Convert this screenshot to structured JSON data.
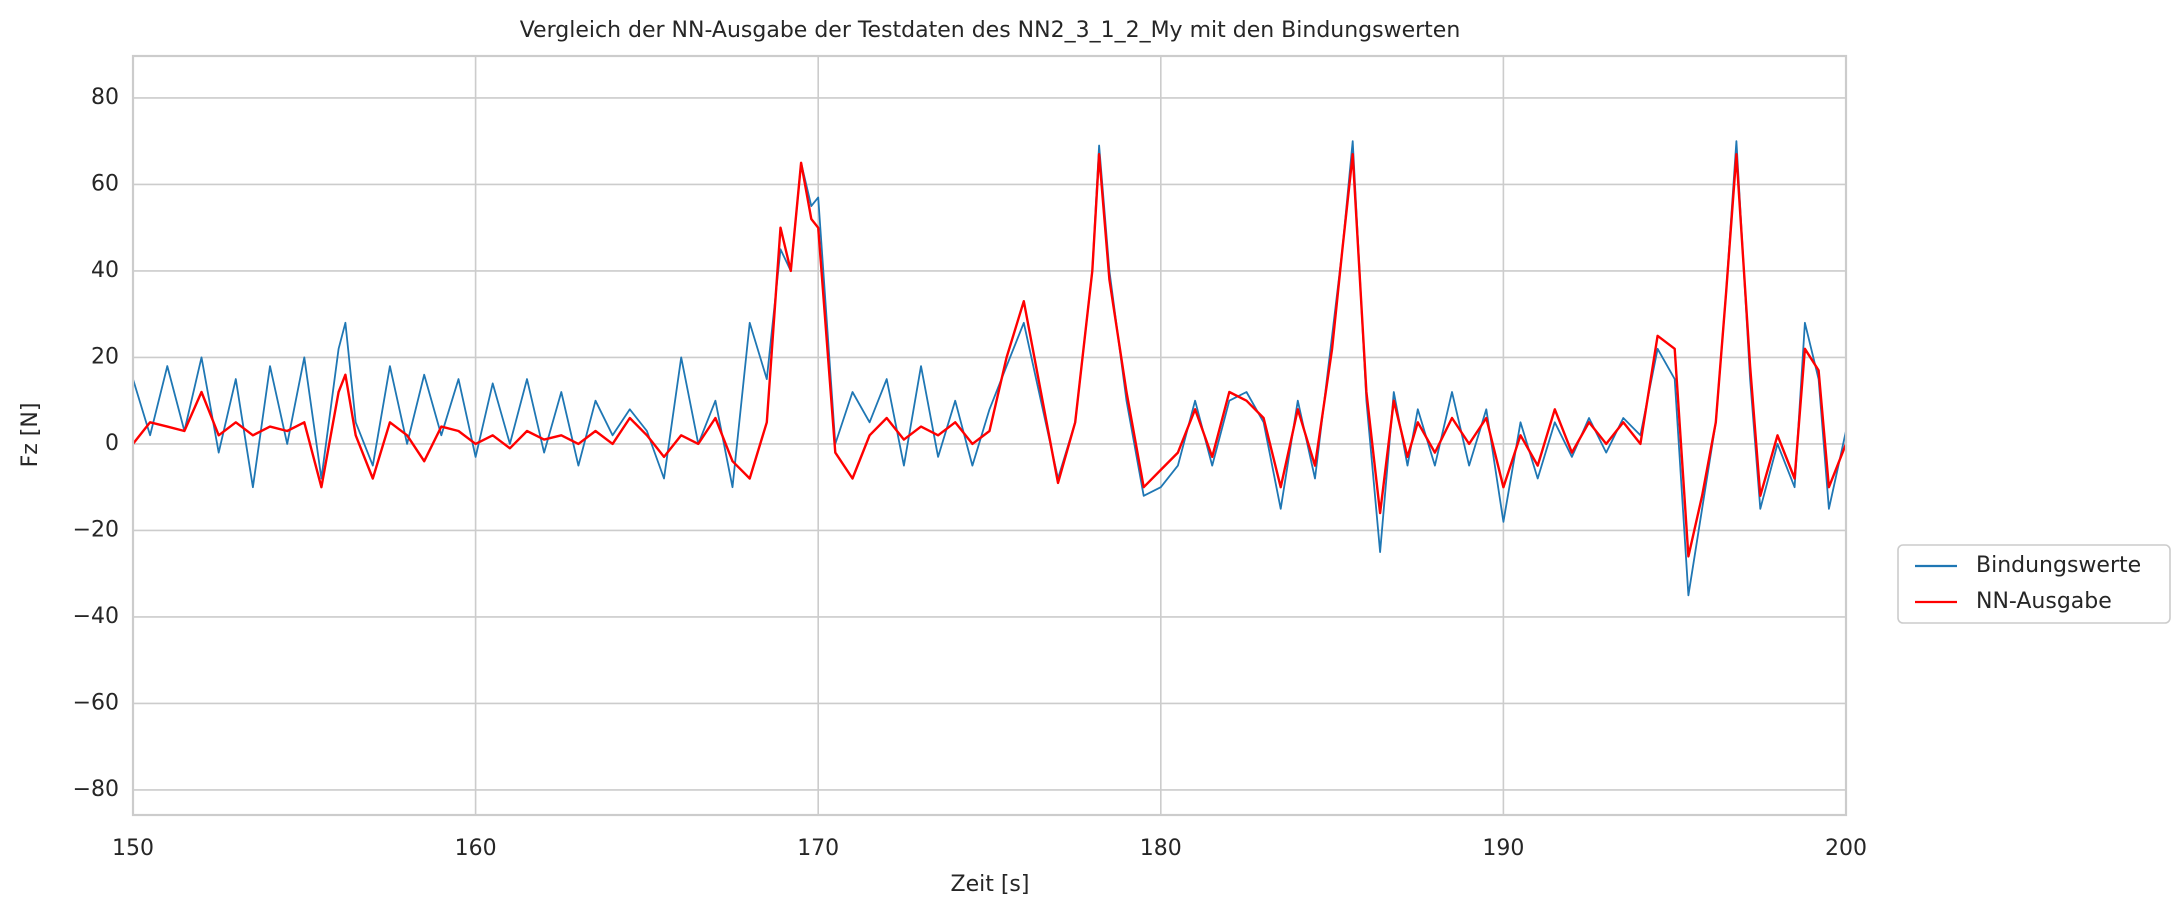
{
  "chart_data": {
    "type": "line",
    "title": "Vergleich der NN-Ausgabe der Testdaten des NN2_3_1_2_My mit den Bindungswerten",
    "xlabel": "Zeit [s]",
    "ylabel": "Fz [N]",
    "x": [
      150,
      150.5,
      151,
      151.5,
      152,
      152.5,
      153,
      153.5,
      154,
      154.5,
      155,
      155.5,
      156,
      156.2,
      156.5,
      157,
      157.5,
      158,
      158.5,
      159,
      159.5,
      160,
      160.5,
      161,
      161.5,
      162,
      162.5,
      163,
      163.5,
      164,
      164.5,
      165,
      165.5,
      166,
      166.5,
      167,
      167.5,
      168,
      168.5,
      168.9,
      169.2,
      169.5,
      169.8,
      170,
      170.5,
      171,
      171.5,
      172,
      172.5,
      173,
      173.5,
      174,
      174.5,
      175,
      175.5,
      176,
      176.5,
      177,
      177.5,
      178,
      178.2,
      178.5,
      179,
      179.5,
      180,
      180.5,
      181,
      181.5,
      182,
      182.5,
      183,
      183.5,
      184,
      184.5,
      185,
      185.3,
      185.6,
      186,
      186.4,
      186.8,
      187.2,
      187.5,
      188,
      188.5,
      189,
      189.5,
      190,
      190.5,
      191,
      191.5,
      192,
      192.5,
      193,
      193.5,
      194,
      194.5,
      195,
      195.4,
      195.8,
      196.2,
      196.5,
      196.8,
      197.2,
      197.5,
      198,
      198.5,
      198.8,
      199.2,
      199.5,
      200
    ],
    "series": [
      {
        "name": "Bindungswerte",
        "color": "#1f77b4",
        "values": [
          15,
          2,
          18,
          3,
          20,
          -2,
          15,
          -10,
          18,
          0,
          20,
          -8,
          22,
          28,
          5,
          -5,
          18,
          0,
          16,
          2,
          15,
          -3,
          14,
          0,
          15,
          -2,
          12,
          -5,
          10,
          2,
          8,
          3,
          -8,
          20,
          0,
          10,
          -10,
          28,
          15,
          45,
          40,
          65,
          55,
          57,
          0,
          12,
          5,
          15,
          -5,
          18,
          -3,
          10,
          -5,
          8,
          18,
          28,
          10,
          -8,
          5,
          40,
          69,
          40,
          10,
          -12,
          -10,
          -5,
          10,
          -5,
          10,
          12,
          5,
          -15,
          10,
          -8,
          25,
          45,
          70,
          10,
          -25,
          12,
          -5,
          8,
          -5,
          12,
          -5,
          8,
          -18,
          5,
          -8,
          5,
          -3,
          6,
          -2,
          6,
          2,
          22,
          15,
          -35,
          -15,
          5,
          35,
          70,
          15,
          -15,
          0,
          -10,
          28,
          15,
          -15,
          3
        ]
      },
      {
        "name": "NN-Ausgabe",
        "color": "#ff0000",
        "values": [
          0,
          5,
          4,
          3,
          12,
          2,
          5,
          2,
          4,
          3,
          5,
          -10,
          12,
          16,
          2,
          -8,
          5,
          2,
          -4,
          4,
          3,
          0,
          2,
          -1,
          3,
          1,
          2,
          0,
          3,
          0,
          6,
          2,
          -3,
          2,
          0,
          6,
          -4,
          -8,
          5,
          50,
          40,
          65,
          52,
          50,
          -2,
          -8,
          2,
          6,
          1,
          4,
          2,
          5,
          0,
          3,
          20,
          33,
          12,
          -9,
          5,
          40,
          67,
          38,
          12,
          -10,
          -6,
          -2,
          8,
          -3,
          12,
          10,
          6,
          -10,
          8,
          -5,
          22,
          45,
          67,
          12,
          -16,
          10,
          -3,
          5,
          -2,
          6,
          0,
          6,
          -10,
          2,
          -5,
          8,
          -2,
          5,
          0,
          5,
          0,
          25,
          22,
          -26,
          -12,
          5,
          35,
          67,
          18,
          -12,
          2,
          -8,
          22,
          17,
          -10,
          0
        ]
      }
    ],
    "xlim": [
      150,
      200
    ],
    "xticks": [
      150,
      160,
      170,
      180,
      190,
      200
    ],
    "ylim": [
      -85.8,
      89.7
    ],
    "yticks": [
      {
        "value": -80,
        "label": "−80"
      },
      {
        "value": -60,
        "label": "−60"
      },
      {
        "value": -40,
        "label": "−40"
      },
      {
        "value": -20,
        "label": "−20"
      },
      0,
      20,
      40,
      60,
      80
    ],
    "grid": true,
    "legend": "right"
  }
}
